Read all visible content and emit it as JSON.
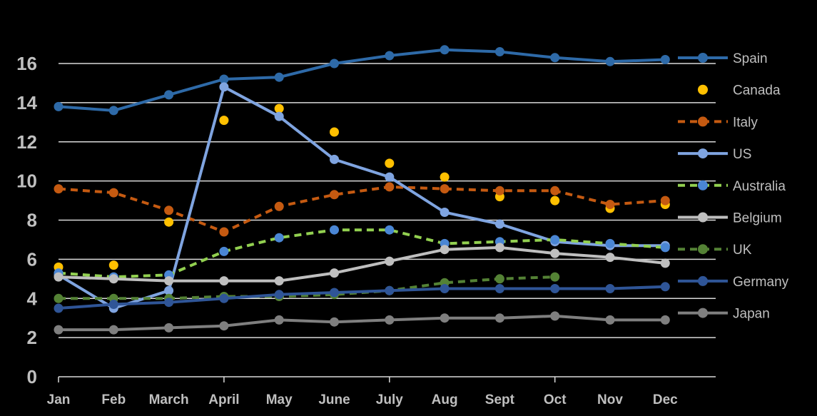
{
  "chart_data": {
    "type": "line",
    "title": "",
    "xlabel": "",
    "ylabel": "",
    "categories": [
      "Jan",
      "Feb",
      "March",
      "April",
      "May",
      "June",
      "July",
      "Aug",
      "Sept",
      "Oct",
      "Nov",
      "Dec"
    ],
    "ylim": [
      0,
      16
    ],
    "yticks": [
      "0",
      "2",
      "4",
      "6",
      "8",
      "10",
      "12",
      "14",
      "16"
    ],
    "grid": true,
    "legend_position": "right",
    "series": [
      {
        "name": "Spain",
        "style": "solid",
        "markers_only": false,
        "color": "#2e6aa8",
        "values": [
          13.8,
          13.6,
          14.4,
          15.2,
          15.3,
          16.0,
          16.4,
          16.7,
          16.6,
          16.3,
          16.1,
          16.2
        ]
      },
      {
        "name": "Canada",
        "style": "none",
        "markers_only": true,
        "color": "#ffc000",
        "values": [
          5.6,
          5.7,
          7.9,
          13.1,
          13.7,
          12.5,
          10.9,
          10.2,
          9.2,
          9.0,
          8.6,
          8.8
        ]
      },
      {
        "name": "Italy",
        "style": "dashed",
        "markers_only": false,
        "color": "#c55a11",
        "values": [
          9.6,
          9.4,
          8.5,
          7.4,
          8.7,
          9.3,
          9.7,
          9.6,
          9.5,
          9.5,
          8.8,
          9.0
        ]
      },
      {
        "name": "US",
        "style": "solid",
        "markers_only": false,
        "color": "#7fa4e0",
        "values": [
          5.2,
          3.5,
          4.4,
          14.8,
          13.3,
          11.1,
          10.2,
          8.4,
          7.8,
          6.9,
          6.7,
          6.7
        ]
      },
      {
        "name": "Australia",
        "style": "dashed",
        "markers_only": false,
        "color": "#92d050",
        "marker_color": "#4a86d4",
        "values": [
          5.3,
          5.1,
          5.2,
          6.4,
          7.1,
          7.5,
          7.5,
          6.8,
          6.9,
          7.0,
          6.8,
          6.6
        ]
      },
      {
        "name": "Belgium",
        "style": "solid",
        "markers_only": false,
        "color": "#bfbfbf",
        "values": [
          5.1,
          5.0,
          4.9,
          4.9,
          4.9,
          5.3,
          5.9,
          6.5,
          6.6,
          6.3,
          6.1,
          5.8
        ]
      },
      {
        "name": "UK",
        "style": "dashed",
        "markers_only": false,
        "color": "#548235",
        "values": [
          4.0,
          4.0,
          4.0,
          4.1,
          4.1,
          4.2,
          4.4,
          4.8,
          5.0,
          5.1,
          null,
          null
        ]
      },
      {
        "name": "Germany",
        "style": "solid",
        "markers_only": false,
        "color": "#2f5597",
        "values": [
          3.5,
          3.7,
          3.8,
          4.0,
          4.2,
          4.3,
          4.4,
          4.5,
          4.5,
          4.5,
          4.5,
          4.6
        ]
      },
      {
        "name": "Japan",
        "style": "solid",
        "markers_only": false,
        "color": "#7f7f7f",
        "values": [
          2.4,
          2.4,
          2.5,
          2.6,
          2.9,
          2.8,
          2.9,
          3.0,
          3.0,
          3.1,
          2.9,
          2.9
        ]
      }
    ]
  }
}
